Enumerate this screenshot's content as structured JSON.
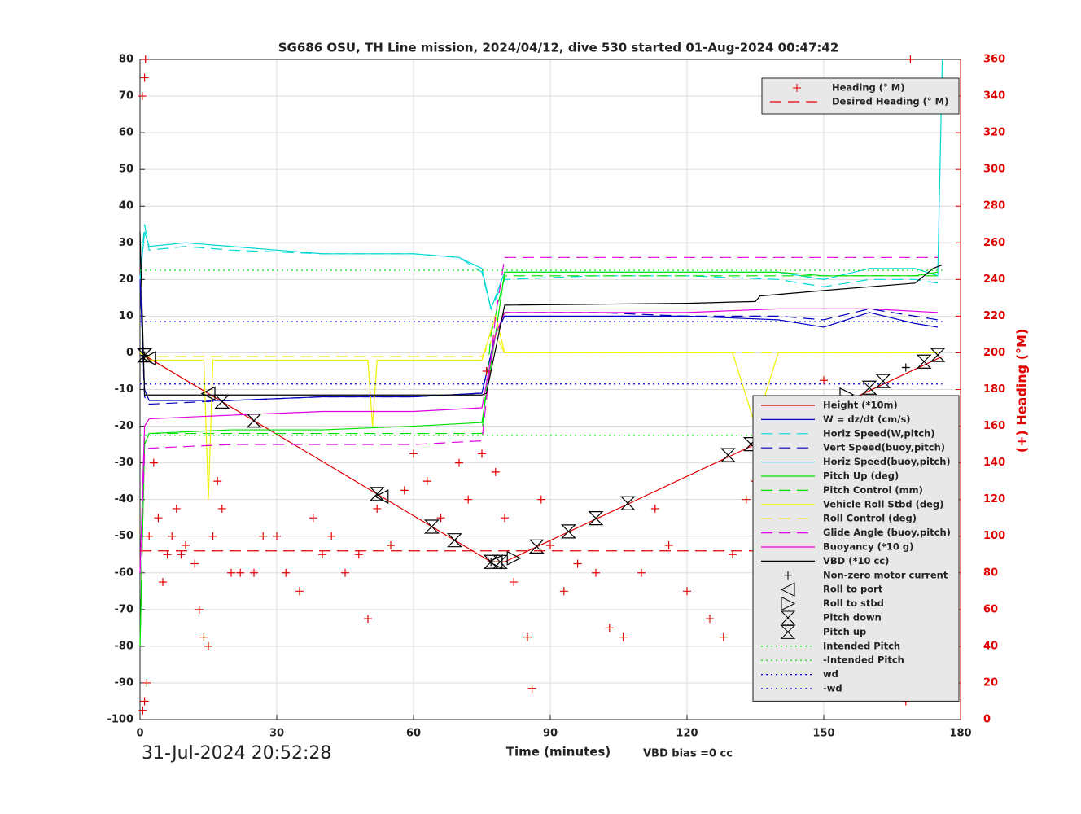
{
  "chart_data": {
    "type": "line",
    "title": "SG686 OSU, TH Line mission, 2024/04/12, dive 530 started 01-Aug-2024 00:47:42",
    "x_label": "Time (minutes)",
    "start_time": "31-Jul-2024 20:52:28",
    "note": "VBD bias =0 cc",
    "y2_label": "(+) Heading (°M)",
    "xlim": [
      0,
      180
    ],
    "xticks": [
      0,
      30,
      60,
      90,
      120,
      150,
      180
    ],
    "ylim": [
      -100,
      80
    ],
    "yticks": [
      -100,
      -90,
      -80,
      -70,
      -60,
      -50,
      -40,
      -30,
      -20,
      -10,
      0,
      10,
      20,
      30,
      40,
      50,
      60,
      70,
      80
    ],
    "y2lim": [
      0,
      360
    ],
    "y2ticks": [
      0,
      20,
      40,
      60,
      80,
      100,
      120,
      140,
      160,
      180,
      200,
      220,
      240,
      260,
      280,
      300,
      320,
      340,
      360
    ],
    "grid": true,
    "legend": "bottom-right",
    "heading_legend": "top-right",
    "heading_series": [
      {
        "name": "Heading (° M)",
        "color": "#e00000",
        "style": "none",
        "marker": "plus",
        "axis": "y2",
        "x": [
          0.5,
          1,
          1.2,
          0.6,
          1,
          1.5,
          2,
          3,
          4,
          5,
          6,
          7,
          8,
          9,
          10,
          12,
          13,
          14,
          15,
          16,
          17,
          18,
          20,
          22,
          25,
          27,
          30,
          32,
          35,
          38,
          40,
          42,
          45,
          48,
          50,
          52,
          55,
          58,
          60,
          63,
          66,
          70,
          72,
          75,
          76,
          78,
          80,
          82,
          85,
          86,
          88,
          90,
          93,
          96,
          100,
          103,
          106,
          110,
          113,
          116,
          120,
          125,
          128,
          130,
          133,
          135,
          140,
          145,
          150,
          152,
          153,
          155,
          157,
          160,
          162,
          165,
          166,
          168,
          169,
          170,
          172,
          174,
          175
        ],
        "values": [
          340,
          350,
          360,
          5,
          10,
          20,
          100,
          140,
          110,
          75,
          90,
          100,
          115,
          90,
          95,
          85,
          60,
          45,
          40,
          100,
          130,
          115,
          80,
          80,
          80,
          100,
          100,
          80,
          70,
          110,
          90,
          100,
          80,
          90,
          55,
          115,
          95,
          125,
          145,
          130,
          110,
          140,
          120,
          145,
          190,
          135,
          110,
          75,
          45,
          17,
          120,
          95,
          70,
          85,
          80,
          50,
          45,
          80,
          115,
          95,
          70,
          55,
          45,
          90,
          120,
          130,
          70,
          80,
          185,
          170,
          60,
          40,
          110,
          70,
          35,
          90,
          60,
          10,
          360,
          45,
          150,
          120,
          100
        ]
      },
      {
        "name": "Desired Heading (° M)",
        "color": "#e00000",
        "style": "dashed",
        "marker": null,
        "axis": "y2",
        "x": [
          0,
          176
        ],
        "values": [
          92,
          92
        ]
      }
    ],
    "series": [
      {
        "name": "Height (*10m)",
        "color": "#e00000",
        "style": "solid",
        "marker": null,
        "x": [
          0,
          77,
          80,
          176
        ],
        "values": [
          0,
          -57,
          -57,
          -1
        ]
      },
      {
        "name": "W = dz/dt (cm/s)",
        "color": "#0000c0",
        "style": "solid",
        "marker": null,
        "x": [
          0,
          1,
          2,
          20,
          40,
          60,
          75,
          78,
          80,
          100,
          120,
          140,
          150,
          160,
          170,
          175
        ],
        "values": [
          20,
          -10,
          -13,
          -13,
          -12,
          -12,
          -11,
          5,
          10,
          10,
          10,
          9,
          7,
          11,
          8,
          7
        ]
      },
      {
        "name": "Horiz Speed(W,pitch)",
        "color": "#00d8d8",
        "style": "dashed",
        "marker": null,
        "x": [
          0,
          1,
          2,
          10,
          20,
          40,
          60,
          70,
          75,
          77,
          80,
          100,
          120,
          140,
          150,
          160,
          170,
          175
        ],
        "values": [
          20,
          35,
          28,
          29,
          28,
          27,
          27,
          26,
          22,
          12,
          20,
          21,
          21,
          20,
          18,
          20,
          20,
          19
        ]
      },
      {
        "name": "Vert Speed(buoy,pitch)",
        "color": "#0000c0",
        "style": "dashed",
        "marker": null,
        "x": [
          0,
          1,
          2,
          20,
          40,
          60,
          75,
          78,
          80,
          100,
          120,
          140,
          150,
          160,
          170,
          175
        ],
        "values": [
          20,
          -12,
          -14,
          -13,
          -12,
          -12,
          -11,
          5,
          11,
          11,
          10,
          10,
          9,
          12,
          10,
          9
        ]
      },
      {
        "name": "Horiz Speed(buoy,pitch)",
        "color": "#00d8d8",
        "style": "solid",
        "marker": null,
        "x": [
          0,
          1,
          2,
          10,
          20,
          40,
          60,
          70,
          75,
          77,
          80,
          100,
          120,
          140,
          150,
          160,
          170,
          175,
          176
        ],
        "values": [
          20,
          33,
          29,
          30,
          29,
          27,
          27,
          26,
          23,
          12,
          22,
          22,
          22,
          22,
          20,
          23,
          23,
          21,
          80
        ]
      },
      {
        "name": "Pitch Up (deg)",
        "color": "#00e000",
        "style": "solid",
        "marker": null,
        "x": [
          0,
          1,
          2,
          20,
          40,
          60,
          75,
          78,
          80,
          100,
          120,
          140,
          150,
          160,
          170,
          175
        ],
        "values": [
          -80,
          -25,
          -22,
          -21,
          -21,
          -20,
          -19,
          5,
          22,
          22,
          22,
          22,
          21,
          21,
          21,
          22
        ]
      },
      {
        "name": "Pitch Control (mm)",
        "color": "#00e000",
        "style": "dashed",
        "marker": null,
        "x": [
          0,
          1,
          2,
          75,
          77,
          80,
          175
        ],
        "values": [
          -80,
          -23,
          -22,
          -22,
          5,
          21,
          21
        ]
      },
      {
        "name": "Vehicle Roll Stbd (deg)",
        "color": "#f0f000",
        "style": "solid",
        "marker": null,
        "x": [
          0,
          2,
          5,
          10,
          14,
          15,
          16,
          30,
          50,
          51,
          52,
          70,
          75,
          78,
          80,
          85,
          90,
          100,
          120,
          130,
          135,
          140,
          150,
          160,
          170,
          175
        ],
        "values": [
          0,
          -2,
          -2,
          -2,
          -2,
          -40,
          -2,
          -2,
          -2,
          -20,
          -2,
          -2,
          -2,
          10,
          0,
          0,
          0,
          0,
          0,
          0,
          -20,
          0,
          0,
          0,
          0,
          0
        ]
      },
      {
        "name": "Roll Control (deg)",
        "color": "#f0f000",
        "style": "dashed",
        "marker": null,
        "x": [
          0,
          2,
          20,
          40,
          60,
          75,
          78,
          80,
          100,
          120,
          140,
          160,
          175
        ],
        "values": [
          0,
          -1,
          -1,
          -1,
          -1,
          -1,
          5,
          0,
          0,
          0,
          0,
          0,
          0
        ]
      },
      {
        "name": "Glide Angle (buoy,pitch)",
        "color": "#e000e0",
        "style": "dashed",
        "marker": null,
        "x": [
          0,
          1,
          2,
          20,
          40,
          60,
          75,
          78,
          80,
          100,
          120,
          140,
          160,
          175
        ],
        "values": [
          -60,
          -27,
          -26,
          -25,
          -25,
          -25,
          -24,
          10,
          26,
          26,
          26,
          26,
          26,
          26
        ]
      },
      {
        "name": "Buoyancy (*10 g)",
        "color": "#e000e0",
        "style": "solid",
        "marker": null,
        "x": [
          0,
          1,
          2,
          20,
          40,
          60,
          75,
          78,
          80,
          100,
          120,
          140,
          160,
          175
        ],
        "values": [
          -60,
          -20,
          -18,
          -17,
          -16,
          -16,
          -15,
          5,
          11,
          11,
          11,
          12,
          12,
          11
        ]
      },
      {
        "name": "VBD (*10 cc)",
        "color": "#000000",
        "style": "solid",
        "marker": null,
        "x": [
          0,
          1,
          2,
          75,
          76,
          80,
          120,
          135,
          136,
          150,
          170,
          174,
          176
        ],
        "values": [
          33,
          -11.5,
          -11.5,
          -11.5,
          -11,
          13,
          13.5,
          14,
          15.5,
          17,
          19,
          23,
          24
        ]
      },
      {
        "name": "Non-zero motor current",
        "color": "#000000",
        "style": "none",
        "marker": "plus",
        "x": [
          1,
          77,
          168
        ],
        "values": [
          -0.7,
          -57,
          -4
        ]
      },
      {
        "name": "Roll to port",
        "color": "#000000",
        "style": "none",
        "marker": "tri-left",
        "x": [
          2,
          15,
          53,
          78
        ],
        "values": [
          -1.5,
          -11.1,
          -39.2,
          -57
        ]
      },
      {
        "name": "Roll to stbd",
        "color": "#000000",
        "style": "none",
        "marker": "tri-right",
        "x": [
          82,
          136,
          155
        ],
        "values": [
          -56,
          -23.7,
          -11.4
        ]
      },
      {
        "name": "Pitch down",
        "color": "#000000",
        "style": "none",
        "marker": "hourglass",
        "x": [
          1,
          18,
          25,
          52,
          64,
          69,
          77
        ],
        "values": [
          -0.7,
          -13.3,
          -18.5,
          -38.5,
          -47.4,
          -51.1,
          -57
        ]
      },
      {
        "name": "Pitch up",
        "color": "#000000",
        "style": "none",
        "marker": "hourglass",
        "x": [
          79,
          87,
          94,
          100,
          107,
          129,
          134,
          160,
          163,
          172,
          175
        ],
        "values": [
          -57,
          -52.8,
          -48.7,
          -45.1,
          -41,
          -27.9,
          -24.9,
          -9.5,
          -7.7,
          -2.4,
          -0.6
        ]
      },
      {
        "name": "Intended Pitch",
        "color": "#00e000",
        "style": "dotted",
        "marker": null,
        "x": [
          0,
          176
        ],
        "values": [
          22.5,
          22.5
        ]
      },
      {
        "name": "-Intended Pitch",
        "color": "#00e000",
        "style": "dotted",
        "marker": null,
        "x": [
          0,
          176
        ],
        "values": [
          -22.5,
          -22.5
        ]
      },
      {
        "name": "wd",
        "color": "#0000e0",
        "style": "dotted",
        "marker": null,
        "x": [
          0,
          176
        ],
        "values": [
          8.5,
          8.5
        ]
      },
      {
        "name": "-wd",
        "color": "#0000e0",
        "style": "dotted",
        "marker": null,
        "x": [
          0,
          176
        ],
        "values": [
          -8.5,
          -8.5
        ]
      }
    ]
  }
}
